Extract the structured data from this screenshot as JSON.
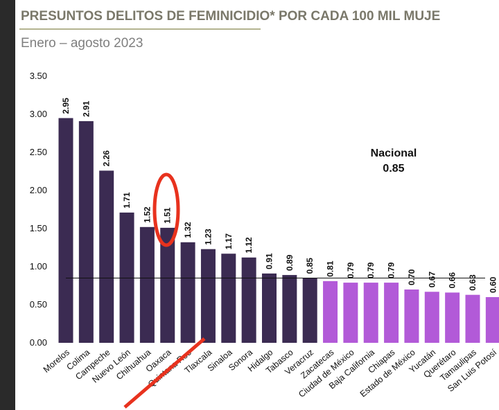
{
  "chart_data": {
    "type": "bar",
    "title": "PRESUNTOS DELITOS DE FEMINICIDIO* POR CADA 100 MIL MUJE",
    "subtitle": "Enero – agosto 2023",
    "categories": [
      "Morelos",
      "Colima",
      "Campeche",
      "Nuevo León",
      "Chihuahua",
      "Oaxaca",
      "Quintana Roo",
      "Tlaxcala",
      "Sinaloa",
      "Sonora",
      "Hidalgo",
      "Tabasco",
      "Veracruz",
      "Zacatecas",
      "Ciudad de México",
      "Baja California",
      "Chiapas",
      "Estado de México",
      "Yucatán",
      "Querétaro",
      "Tamaulipas",
      "San Luis Potosí"
    ],
    "values": [
      2.95,
      2.91,
      2.26,
      1.71,
      1.52,
      1.51,
      1.32,
      1.23,
      1.17,
      1.12,
      0.91,
      0.89,
      0.85,
      0.81,
      0.79,
      0.79,
      0.79,
      0.7,
      0.67,
      0.66,
      0.63,
      0.6
    ],
    "value_labels": [
      "2.95",
      "2.91",
      "2.26",
      "1.71",
      "1.52",
      "1.51",
      "1.32",
      "1.23",
      "1.17",
      "1.12",
      "0.91",
      "0.89",
      "0.85",
      "0.81",
      "0.79",
      "0.79",
      "0.79",
      "0.70",
      "0.67",
      "0.66",
      "0.63",
      "0.60"
    ],
    "colors": [
      "#3b2b52",
      "#3b2b52",
      "#3b2b52",
      "#3b2b52",
      "#3b2b52",
      "#3b2b52",
      "#3b2b52",
      "#3b2b52",
      "#3b2b52",
      "#3b2b52",
      "#3b2b52",
      "#3b2b52",
      "#3b2b52",
      "#b25ad8",
      "#b25ad8",
      "#b25ad8",
      "#b25ad8",
      "#b25ad8",
      "#b25ad8",
      "#b25ad8",
      "#b25ad8",
      "#b25ad8"
    ],
    "ylim": [
      0,
      3.5
    ],
    "yticks": [
      {
        "value": 0,
        "label": "0.00"
      },
      {
        "value": 0.5,
        "label": "0.50"
      },
      {
        "value": 1,
        "label": "1.00"
      },
      {
        "value": 1.5,
        "label": "1.50"
      },
      {
        "value": 2,
        "label": "2.00"
      },
      {
        "value": 2.5,
        "label": "2.50"
      },
      {
        "value": 3,
        "label": "3.00"
      },
      {
        "value": 3.5,
        "label": "3.50"
      }
    ],
    "reference": {
      "label": "Nacional",
      "value": 0.85
    }
  }
}
